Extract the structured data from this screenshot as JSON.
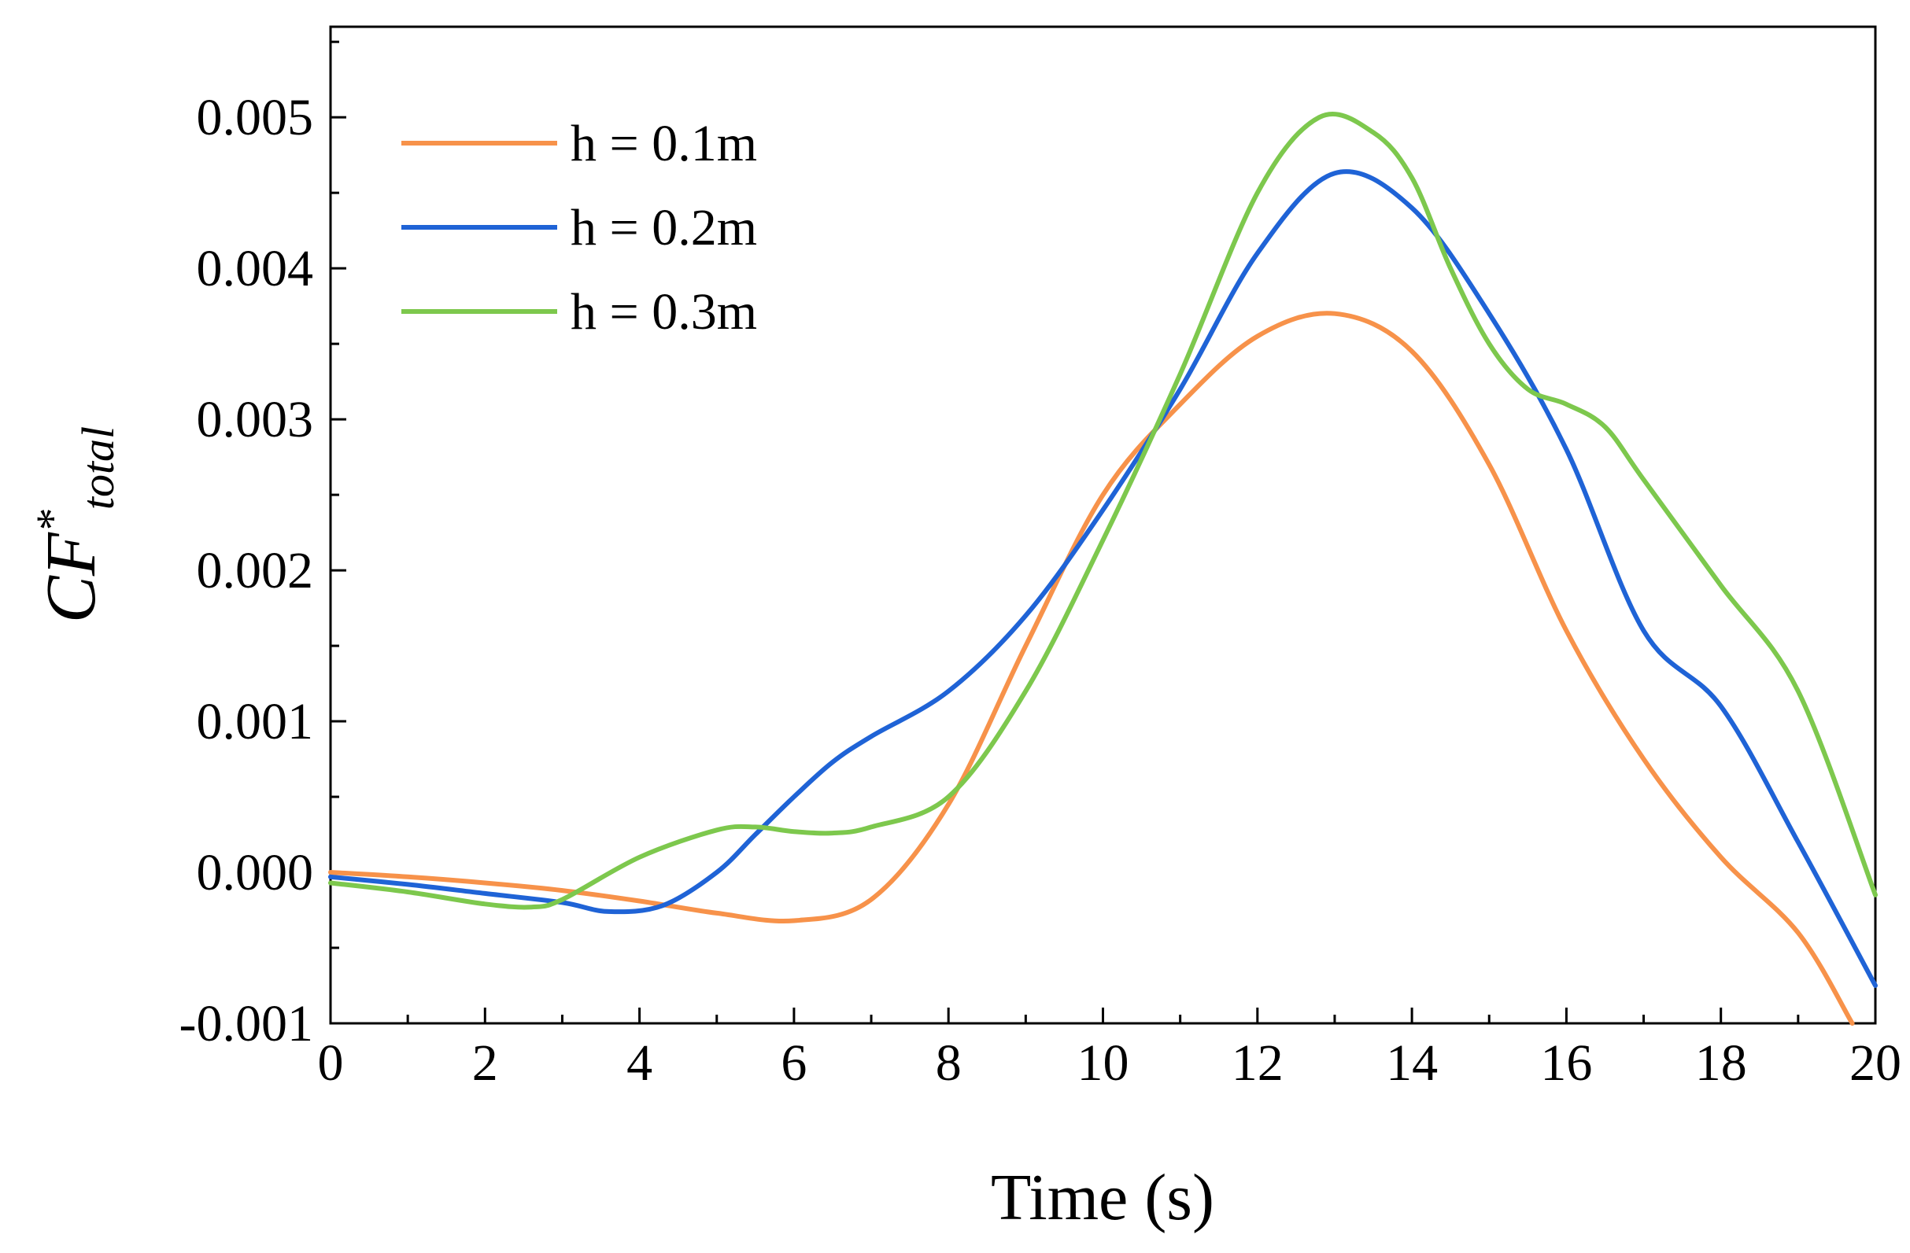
{
  "chart_data": {
    "type": "line",
    "title": "",
    "xlabel": "Time (s)",
    "ylabel": {
      "main": "CF",
      "superscript": "*",
      "subscript": "total"
    },
    "xlim": [
      0,
      20
    ],
    "ylim": [
      -0.001,
      0.0056
    ],
    "x_ticks": [
      0,
      2,
      4,
      6,
      8,
      10,
      12,
      14,
      16,
      18,
      20
    ],
    "x_tick_labels": [
      "0",
      "2",
      "4",
      "6",
      "8",
      "10",
      "12",
      "14",
      "16",
      "18",
      "20"
    ],
    "y_ticks": [
      -0.001,
      0.0,
      0.001,
      0.002,
      0.003,
      0.004,
      0.005
    ],
    "y_tick_labels": [
      "-0.001",
      "0.000",
      "0.001",
      "0.002",
      "0.003",
      "0.004",
      "0.005"
    ],
    "legend_position": "top-left",
    "grid": false,
    "series": [
      {
        "name": "h = 0.1m",
        "color": "#F7924A",
        "x": [
          0,
          1,
          2,
          3,
          4,
          5,
          6,
          7,
          8,
          9,
          10,
          11,
          12,
          13,
          14,
          15,
          16,
          17,
          18,
          19,
          19.7
        ],
        "y": [
          0.0,
          -3e-05,
          -7e-05,
          -0.00012,
          -0.00019,
          -0.00027,
          -0.00032,
          -0.00018,
          0.00045,
          0.0015,
          0.0025,
          0.0031,
          0.00355,
          0.0037,
          0.00345,
          0.0027,
          0.0016,
          0.00075,
          0.0001,
          -0.0004,
          -0.001
        ]
      },
      {
        "name": "h = 0.2m",
        "color": "#1F63D6",
        "x": [
          0,
          1,
          2,
          3,
          3.6,
          4.3,
          5,
          5.5,
          6,
          6.5,
          7,
          8,
          9,
          10,
          11,
          12,
          13,
          14,
          15,
          16,
          17,
          18,
          19,
          20
        ],
        "y": [
          -3e-05,
          -8e-05,
          -0.00014,
          -0.0002,
          -0.00026,
          -0.00022,
          0.0,
          0.00025,
          0.0005,
          0.00073,
          0.0009,
          0.0012,
          0.0017,
          0.0024,
          0.0032,
          0.0041,
          0.00463,
          0.0044,
          0.0037,
          0.0028,
          0.0016,
          0.0011,
          0.0002,
          -0.00075
        ]
      },
      {
        "name": "h = 0.3m",
        "color": "#7DC84D",
        "x": [
          0,
          1,
          2,
          2.6,
          3,
          4,
          5,
          5.5,
          6,
          6.5,
          7,
          8,
          9,
          10,
          11,
          12,
          12.8,
          13.5,
          14,
          14.5,
          15,
          15.5,
          16,
          16.5,
          17,
          18,
          19,
          20
        ],
        "y": [
          -7e-05,
          -0.00013,
          -0.00021,
          -0.00023,
          -0.00018,
          0.0001,
          0.00028,
          0.0003,
          0.00027,
          0.00026,
          0.0003,
          0.0005,
          0.0012,
          0.0022,
          0.0033,
          0.0045,
          0.005,
          0.0049,
          0.0046,
          0.004,
          0.0035,
          0.0032,
          0.0031,
          0.00295,
          0.0026,
          0.0019,
          0.0012,
          -0.00015
        ]
      }
    ]
  }
}
